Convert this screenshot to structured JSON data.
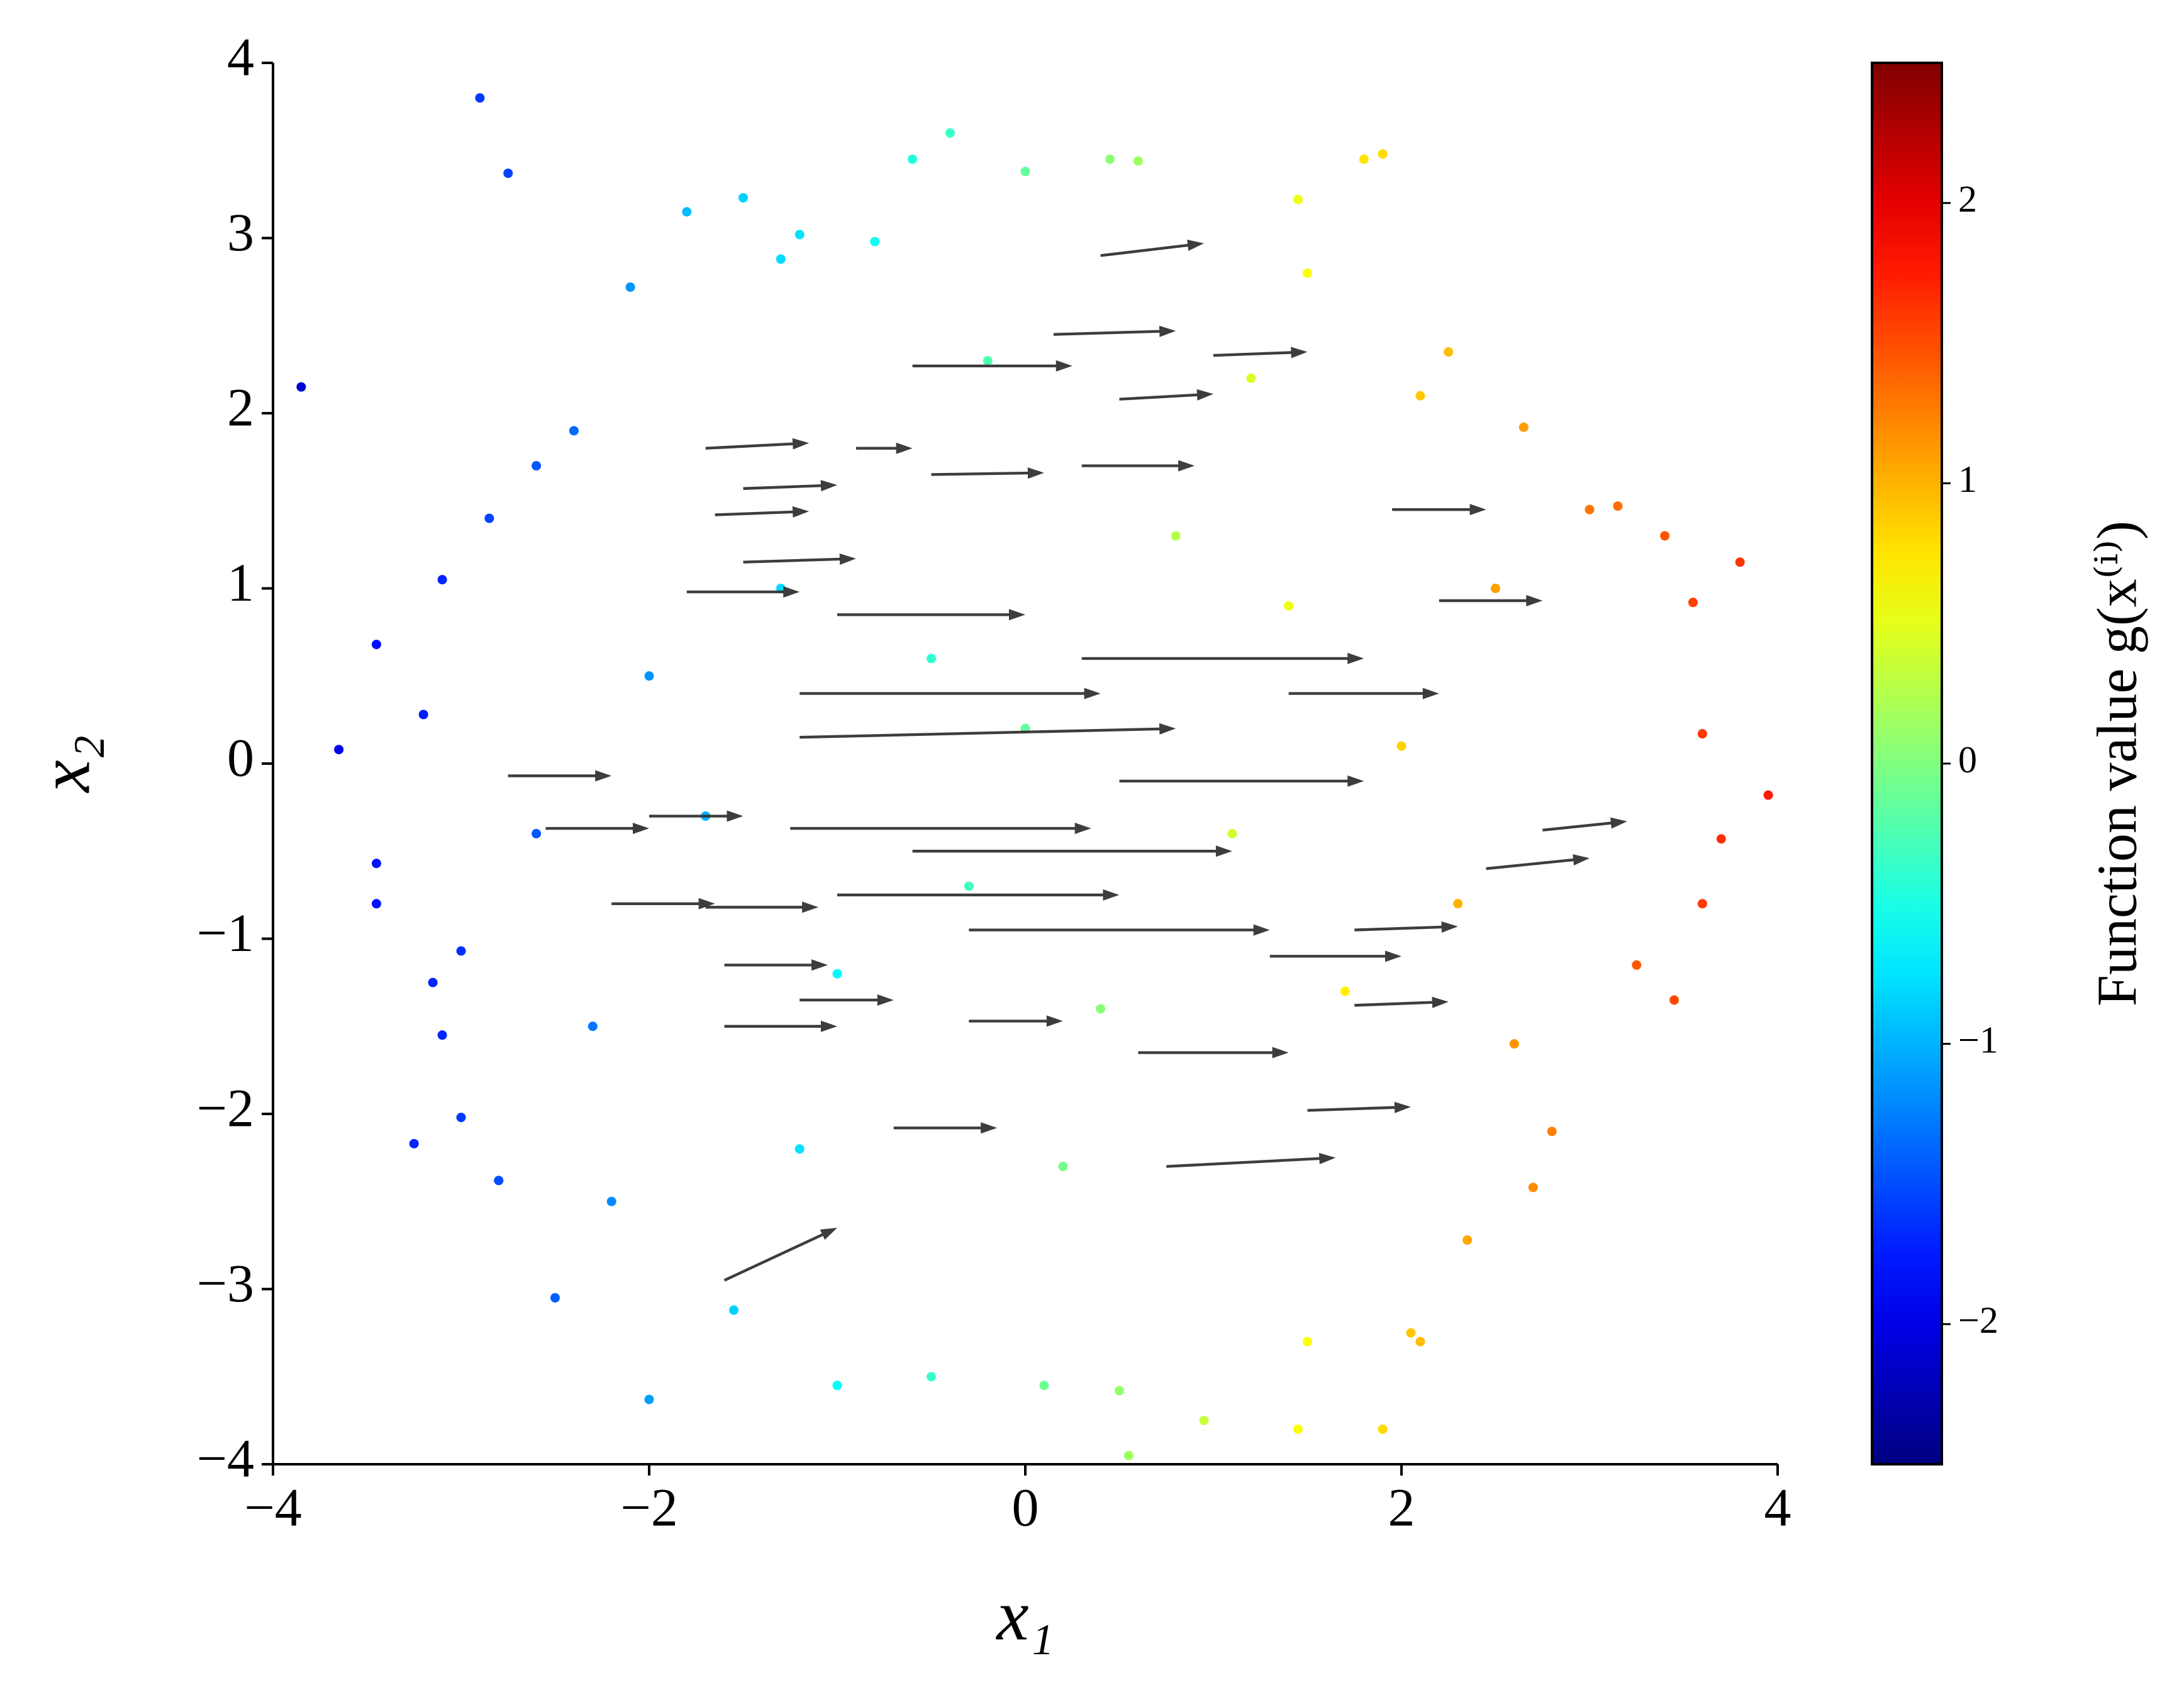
{
  "chart_data": {
    "type": "scatter",
    "x": [
      -3.85,
      -2.9,
      -2.75,
      -3.65,
      -3.45,
      -3.45,
      -3.45,
      -3.25,
      -3.0,
      -2.5,
      -2.0,
      -2.1,
      -1.8,
      -1.5,
      -1.3,
      -1.2,
      -0.8,
      -0.6,
      -0.4,
      0.0,
      0.45,
      0.6,
      1.45,
      1.8,
      1.9,
      1.5,
      2.25,
      2.1,
      2.65,
      3.0,
      3.15,
      3.4,
      3.8,
      3.55,
      3.6,
      3.95,
      3.7,
      3.6,
      3.45,
      3.25,
      2.8,
      2.7,
      2.35,
      2.1,
      2.05,
      1.9,
      1.45,
      1.5,
      0.95,
      0.55,
      0.5,
      0.1,
      -0.5,
      -1.0,
      -1.55,
      -2.8,
      -2.2,
      -3.1,
      -3.15,
      -3.0,
      -3.2,
      -3.1,
      -2.85,
      -2.6,
      -2.4,
      -2.0,
      -1.7,
      -1.3,
      -1.0,
      -0.5,
      -0.3,
      0.0,
      0.4,
      0.8,
      1.1,
      1.4,
      1.7,
      2.0,
      2.3,
      2.5,
      -1.2,
      0.2,
      1.2,
      -0.2,
      -2.3,
      2.6,
      -2.6
    ],
    "y": [
      2.15,
      3.8,
      3.37,
      0.08,
      0.68,
      -0.57,
      -0.8,
      -2.17,
      -2.02,
      -3.05,
      -3.63,
      2.72,
      3.15,
      3.23,
      2.88,
      3.02,
      2.98,
      3.45,
      3.6,
      3.38,
      3.45,
      3.44,
      3.22,
      3.45,
      3.48,
      2.8,
      2.35,
      2.1,
      1.92,
      1.45,
      1.47,
      1.3,
      1.15,
      0.92,
      0.17,
      -0.18,
      -0.43,
      -0.8,
      -1.35,
      -1.15,
      -2.1,
      -2.42,
      -2.72,
      -3.3,
      -3.25,
      -3.8,
      -3.8,
      -3.3,
      -3.75,
      -3.95,
      -3.58,
      -3.55,
      -3.5,
      -3.55,
      -3.12,
      -2.38,
      -2.5,
      -1.55,
      -1.25,
      -1.07,
      0.28,
      1.05,
      1.4,
      1.7,
      1.9,
      0.5,
      -0.3,
      1.0,
      -1.2,
      0.6,
      -0.7,
      0.2,
      -1.4,
      1.3,
      -0.4,
      0.9,
      -1.3,
      0.1,
      -0.8,
      1.0,
      -2.2,
      -2.3,
      2.2,
      2.3,
      -1.5,
      -1.6,
      -0.4
    ],
    "c": [
      -2.1,
      -1.6,
      -1.55,
      -1.95,
      -1.8,
      -1.8,
      -1.8,
      -1.7,
      -1.6,
      -1.4,
      -1.1,
      -1.15,
      -0.95,
      -0.85,
      -0.8,
      -0.75,
      -0.55,
      -0.45,
      -0.35,
      -0.15,
      0.05,
      0.15,
      0.55,
      0.75,
      0.8,
      0.6,
      0.95,
      0.9,
      1.1,
      1.3,
      1.35,
      1.45,
      1.6,
      1.55,
      1.6,
      1.75,
      1.65,
      1.6,
      1.5,
      1.45,
      1.25,
      1.2,
      1.05,
      0.95,
      0.9,
      0.8,
      0.6,
      0.6,
      0.35,
      0.15,
      0.1,
      -0.1,
      -0.35,
      -0.6,
      -0.85,
      -1.5,
      -1.2,
      -1.7,
      -1.7,
      -1.65,
      -1.75,
      -1.7,
      -1.55,
      -1.45,
      -1.35,
      -1.15,
      -1.0,
      -0.8,
      -0.65,
      -0.4,
      -0.3,
      -0.15,
      0.05,
      0.25,
      0.4,
      0.55,
      0.7,
      0.85,
      1.0,
      1.1,
      -0.75,
      -0.05,
      0.45,
      -0.25,
      -1.3,
      1.15,
      -1.45
    ],
    "cmap": "jet",
    "quiver": {
      "color": "#333333",
      "x": [
        0.4,
        0.15,
        -0.6,
        1.0,
        0.5,
        -1.7,
        -0.9,
        -1.5,
        -1.65,
        -0.5,
        0.3,
        1.95,
        -1.5,
        -1.8,
        2.2,
        -1.0,
        0.3,
        -1.2,
        1.4,
        -1.2,
        0.5,
        -2.75,
        -2.55,
        -2.0,
        2.75,
        2.45,
        -1.25,
        -0.6,
        -2.2,
        -1.7,
        -1.0,
        -0.3,
        1.75,
        -1.6,
        1.3,
        -1.2,
        1.75,
        -1.6,
        -0.3,
        0.6,
        1.5,
        -0.7,
        0.75,
        -1.6
      ],
      "y": [
        2.9,
        2.45,
        2.27,
        2.33,
        2.08,
        1.8,
        1.8,
        1.57,
        1.42,
        1.65,
        1.7,
        1.45,
        1.15,
        0.98,
        0.93,
        0.85,
        0.6,
        0.4,
        0.4,
        0.15,
        -0.1,
        -0.07,
        -0.37,
        -0.3,
        -0.38,
        -0.6,
        -0.37,
        -0.5,
        -0.8,
        -0.82,
        -0.75,
        -0.95,
        -0.95,
        -1.15,
        -1.1,
        -1.35,
        -1.38,
        -1.5,
        -1.47,
        -1.65,
        -1.98,
        -2.08,
        -2.3,
        -2.95
      ],
      "u": [
        0.55,
        0.65,
        0.85,
        0.5,
        0.5,
        0.55,
        0.3,
        0.5,
        0.5,
        0.6,
        0.6,
        0.5,
        0.6,
        0.6,
        0.55,
        1.0,
        1.5,
        1.6,
        0.8,
        2.0,
        1.3,
        0.55,
        0.55,
        0.5,
        0.45,
        0.55,
        1.6,
        1.7,
        0.55,
        0.6,
        1.5,
        1.6,
        0.55,
        0.55,
        0.7,
        0.5,
        0.5,
        0.6,
        0.5,
        0.8,
        0.55,
        0.55,
        0.9,
        0.6
      ],
      "v": [
        0.07,
        0.02,
        0.0,
        0.02,
        0.03,
        0.03,
        0.0,
        0.02,
        0.02,
        0.01,
        0.0,
        0.0,
        0.02,
        0.0,
        0.0,
        0.0,
        0.0,
        0.0,
        0.0,
        0.05,
        0.0,
        0.0,
        0.0,
        0.0,
        0.05,
        0.06,
        0.0,
        0.0,
        0.0,
        0.0,
        0.0,
        0.0,
        0.02,
        0.0,
        0.0,
        0.0,
        0.02,
        0.0,
        0.0,
        0.0,
        0.02,
        0.0,
        0.05,
        0.3
      ]
    },
    "xlabel": "x₁",
    "ylabel": "x₂",
    "xlim": [
      -4,
      4
    ],
    "ylim": [
      -4,
      4
    ],
    "xticks": [
      {
        "value": -4,
        "label": "−4"
      },
      {
        "value": -2,
        "label": "−2"
      },
      0,
      2,
      4
    ],
    "yticks": [
      {
        "value": -4,
        "label": "−4"
      },
      {
        "value": -3,
        "label": "−3"
      },
      {
        "value": -2,
        "label": "−2"
      },
      {
        "value": -1,
        "label": "−1"
      },
      0,
      1,
      2,
      3,
      4
    ],
    "colorbar_label": "Function value g(x⁽ⁱ⁾)",
    "clim": [
      -2.5,
      2.5
    ],
    "cticks": [
      {
        "value": -2,
        "label": "−2"
      },
      {
        "value": -1,
        "label": "−1"
      },
      0,
      1,
      2
    ]
  }
}
